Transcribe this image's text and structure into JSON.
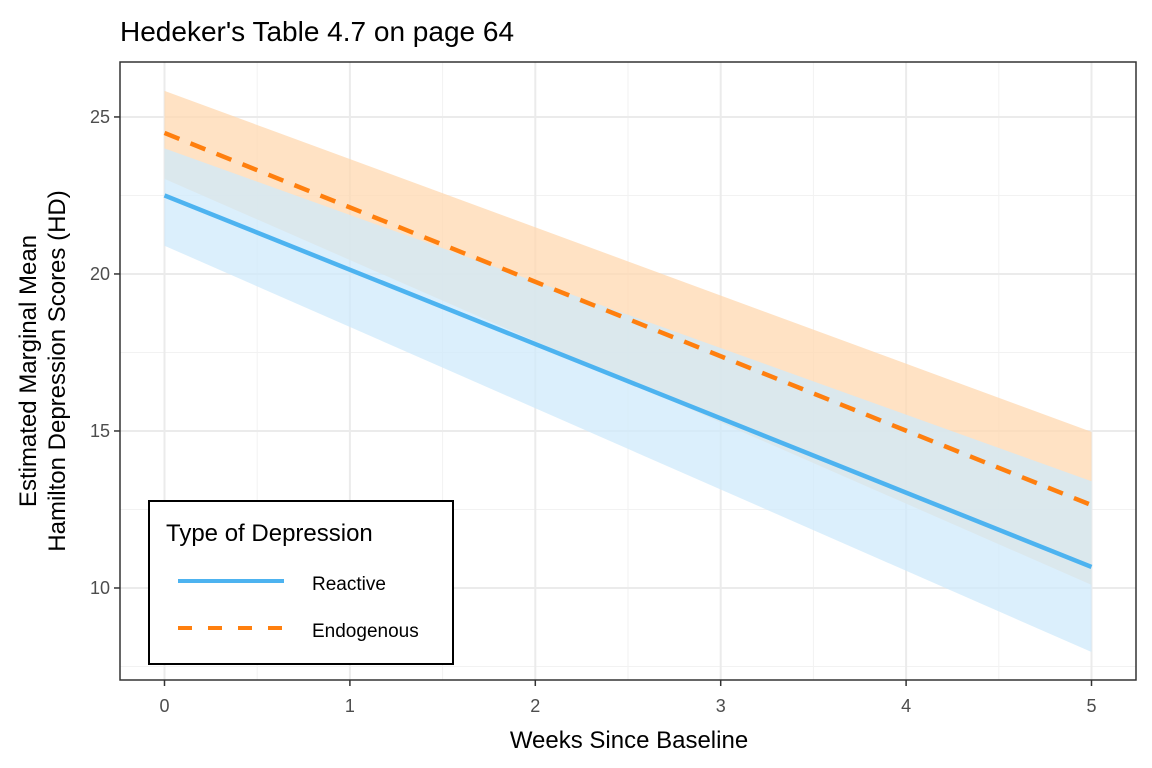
{
  "chart_data": {
    "type": "line",
    "title": "Hedeker's Table 4.7 on page 64",
    "xlabel": "Weeks Since Baseline",
    "ylabel_lines": [
      "Estimated Marginal Mean",
      "Hamilton Depression Scores (HD)"
    ],
    "xlim": [
      -0.24,
      5.24
    ],
    "ylim": [
      7.07,
      26.75
    ],
    "x_ticks": [
      0,
      1,
      2,
      3,
      4,
      5
    ],
    "x_tick_labels": [
      "0",
      "1",
      "2",
      "3",
      "4",
      "5"
    ],
    "y_ticks": [
      10,
      15,
      20,
      25
    ],
    "y_tick_labels": [
      "10",
      "15",
      "20",
      "25"
    ],
    "x_minor_gridlines": [
      0.5,
      1.5,
      2.5,
      3.5,
      4.5
    ],
    "y_minor_gridlines": [
      7.5,
      12.5,
      17.5,
      22.5
    ],
    "grid": true,
    "x": [
      0,
      5
    ],
    "series": [
      {
        "name": "Reactive",
        "color": "#4db3f0",
        "band_color": "#cfeafb",
        "linestyle": "solid",
        "values": [
          22.5,
          10.67
        ],
        "upper": [
          24.0,
          13.4
        ],
        "lower": [
          20.9,
          7.96
        ]
      },
      {
        "name": "Endogenous",
        "color": "#ff7f0e",
        "band_color": "#ffd8b0",
        "linestyle": "dashed",
        "values": [
          24.49,
          12.64
        ],
        "upper": [
          25.83,
          14.97
        ],
        "lower": [
          23.03,
          10.1
        ]
      }
    ],
    "legend": {
      "title": "Type of Depression",
      "placement": "bottom-left",
      "entries": [
        "Reactive",
        "Endogenous"
      ]
    }
  }
}
